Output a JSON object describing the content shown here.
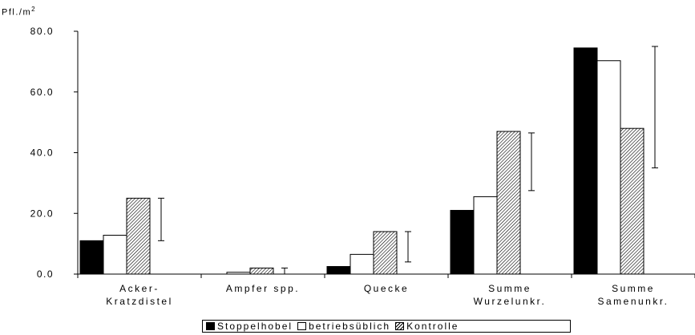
{
  "chart_data": {
    "type": "bar",
    "y_unit_label": "Pfl./m",
    "y_unit_sup": "2",
    "ylim": [
      0,
      80
    ],
    "yticks": [
      0,
      20,
      40,
      60,
      80
    ],
    "ytick_labels": [
      "0.0",
      "20.0",
      "40.0",
      "60.0",
      "80.0"
    ],
    "grid": false,
    "legend_position": "bottom",
    "categories": [
      [
        "Acker-",
        "Kratzdistel"
      ],
      [
        "Ampfer spp."
      ],
      [
        "Quecke"
      ],
      [
        "Summe",
        "Wurzelunkr."
      ],
      [
        "Summe",
        "Samenunkr."
      ]
    ],
    "series": [
      {
        "name": "Stoppelhobel",
        "fill": "black",
        "values": [
          11.0,
          0.0,
          2.5,
          21.0,
          74.5
        ]
      },
      {
        "name": "betriebsüblich",
        "fill": "white",
        "values": [
          12.8,
          0.6,
          6.5,
          25.5,
          70.3
        ]
      },
      {
        "name": "Kontrolle",
        "fill": "hatch",
        "values": [
          25.0,
          2.0,
          14.0,
          47.0,
          48.0
        ]
      }
    ],
    "error_bars": [
      {
        "low": 11.0,
        "high": 25.0
      },
      {
        "low": 0.0,
        "high": 2.0
      },
      {
        "low": 4.0,
        "high": 14.0
      },
      {
        "low": 27.5,
        "high": 46.5
      },
      {
        "low": 35.0,
        "high": 75.0
      }
    ]
  },
  "colors": {
    "bar_black": "#000000",
    "bar_white": "#ffffff",
    "hatch_line": "#000000"
  }
}
